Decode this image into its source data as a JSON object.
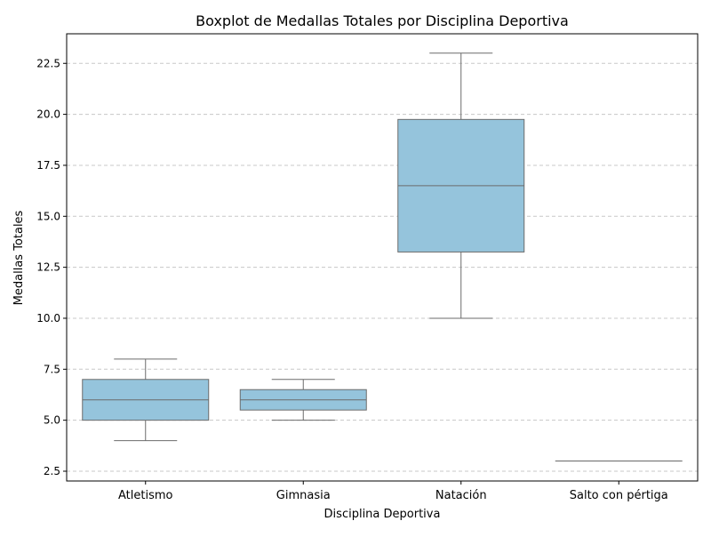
{
  "chart_data": {
    "type": "boxplot",
    "title": "Boxplot de Medallas Totales por Disciplina Deportiva",
    "xlabel": "Disciplina Deportiva",
    "ylabel": "Medallas Totales",
    "categories": [
      "Atletismo",
      "Gimnasia",
      "Natación",
      "Salto con pértiga"
    ],
    "boxes": [
      {
        "min": 4,
        "q1": 5,
        "median": 6,
        "q3": 7,
        "max": 8
      },
      {
        "min": 5,
        "q1": 5.5,
        "median": 6,
        "q3": 6.5,
        "max": 7
      },
      {
        "min": 10,
        "q1": 13.25,
        "median": 16.5,
        "q3": 19.75,
        "max": 23
      },
      {
        "min": 3,
        "q1": 3,
        "median": 3,
        "q3": 3,
        "max": 3
      }
    ],
    "ylim": [
      2.02,
      23.95
    ],
    "yticks": [
      2.5,
      5.0,
      7.5,
      10.0,
      12.5,
      15.0,
      17.5,
      20.0,
      22.5
    ],
    "ytick_labels": [
      "2.5",
      "5.0",
      "7.5",
      "10.0",
      "12.5",
      "15.0",
      "17.5",
      "20.0",
      "22.5"
    ],
    "grid": "y dashed",
    "colors": {
      "box_fill": "#95c4dc",
      "line": "#6b6b6b",
      "grid": "#c8c8c8"
    }
  }
}
